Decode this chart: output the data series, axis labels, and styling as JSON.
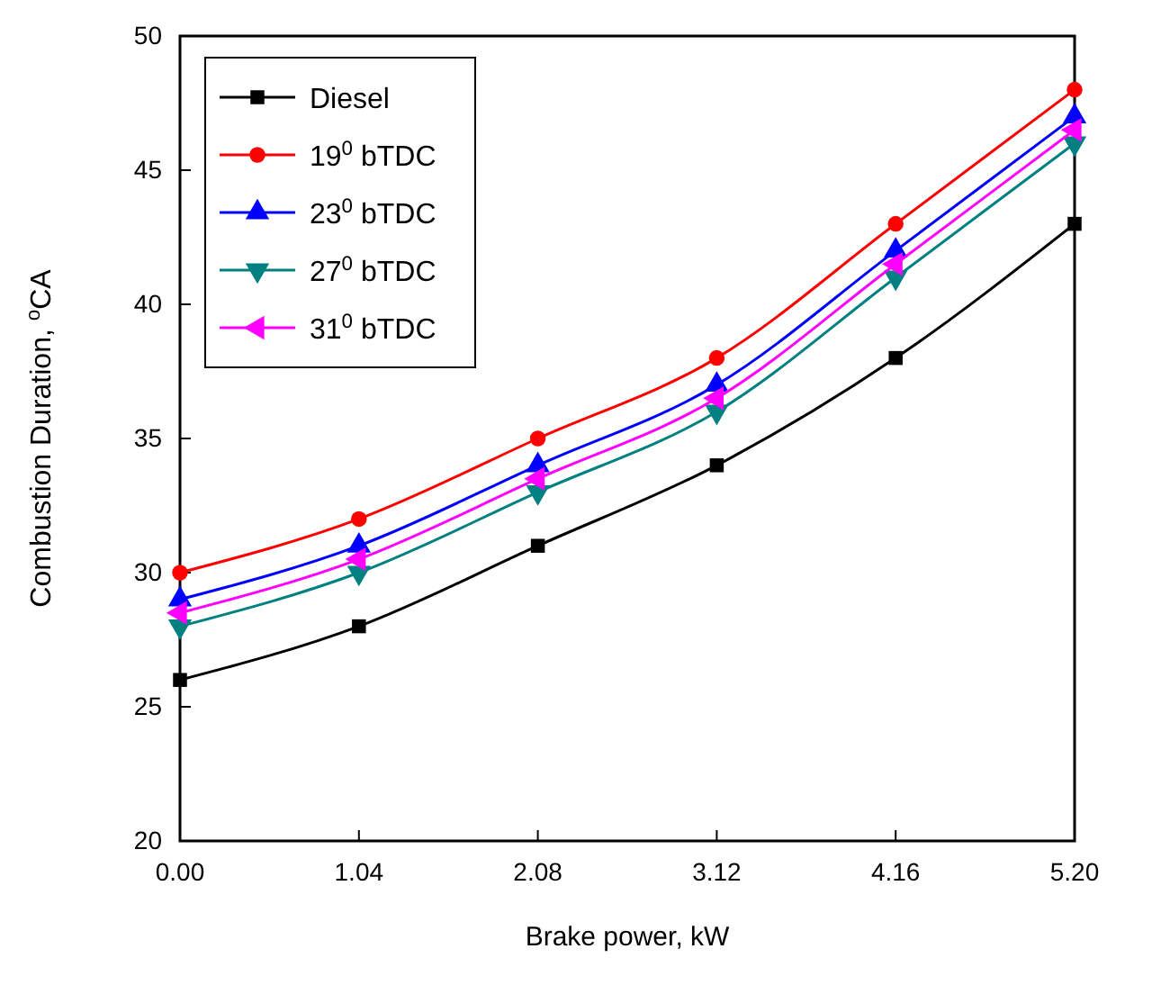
{
  "chart_data": {
    "type": "line",
    "xlabel": "Brake power, kW",
    "ylabel": "Combustion Duration, $^{o}$CA",
    "x": [
      0,
      1.04,
      2.08,
      3.12,
      4.16,
      5.2
    ],
    "xlim": [
      0,
      5.2
    ],
    "xticks": [
      {
        "value": 0,
        "label": "0.00"
      },
      {
        "value": 1.04,
        "label": "1.04"
      },
      {
        "value": 2.08,
        "label": "2.08"
      },
      {
        "value": 3.12,
        "label": "3.12"
      },
      {
        "value": 4.16,
        "label": "4.16"
      },
      {
        "value": 5.2,
        "label": "5.20"
      }
    ],
    "ylim": [
      20,
      50
    ],
    "yticks": [
      20,
      25,
      30,
      35,
      40,
      45,
      50
    ],
    "grid": false,
    "legend": "top left",
    "series": [
      {
        "name": "Diesel",
        "color": "#000000",
        "marker": "square",
        "values": [
          26,
          28,
          31,
          34,
          38,
          43
        ]
      },
      {
        "name": "19$^{0}$ bTDC",
        "color": "#ff0000",
        "marker": "circle",
        "values": [
          30,
          32,
          35,
          38,
          43,
          48
        ]
      },
      {
        "name": "23$^{0}$ bTDC",
        "color": "#0000ff",
        "marker": "triangle",
        "values": [
          29,
          31,
          34,
          37,
          42,
          47
        ]
      },
      {
        "name": "27$^{0}$ bTDC",
        "color": "#008080",
        "marker": "triangle",
        "values": [
          28,
          30,
          33,
          36,
          41,
          46
        ]
      },
      {
        "name": "31$^{0}$ bTDC",
        "color": "#ff00ff",
        "marker": "triangle",
        "values": [
          28.5,
          30.5,
          33.5,
          36.5,
          41.5,
          46.5
        ]
      }
    ]
  }
}
